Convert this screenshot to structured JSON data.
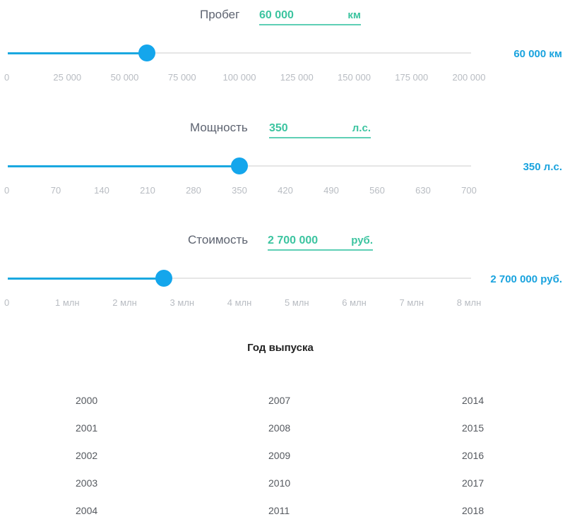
{
  "mileage": {
    "label": "Пробег",
    "value": "60 000",
    "unit": "км",
    "readout": "60 000 км",
    "level": 60000,
    "max": 200000,
    "ticks": [
      "0",
      "25 000",
      "50 000",
      "75 000",
      "100 000",
      "125 000",
      "150 000",
      "175 000",
      "200 000"
    ]
  },
  "power": {
    "label": "Мощность",
    "value": "350",
    "unit": "л.с.",
    "readout": "350 л.с.",
    "level": 350,
    "max": 700,
    "ticks": [
      "0",
      "70",
      "140",
      "210",
      "280",
      "350",
      "420",
      "490",
      "560",
      "630",
      "700"
    ]
  },
  "price": {
    "label": "Стоимость",
    "value": "2 700 000",
    "unit": "руб.",
    "readout": "2 700 000 руб.",
    "level": 2700000,
    "max": 8000000,
    "ticks": [
      "0",
      "1 млн",
      "2 млн",
      "3 млн",
      "4 млн",
      "5 млн",
      "6 млн",
      "7 млн",
      "8 млн"
    ]
  },
  "years": {
    "title": "Год выпуска",
    "col1": [
      "2000",
      "2001",
      "2002",
      "2003",
      "2004"
    ],
    "col2": [
      "2007",
      "2008",
      "2009",
      "2010",
      "2011"
    ],
    "col3": [
      "2014",
      "2015",
      "2016",
      "2017",
      "2018"
    ]
  },
  "colors": {
    "accent_green": "#3cc4a0",
    "accent_blue": "#14a6ec"
  }
}
